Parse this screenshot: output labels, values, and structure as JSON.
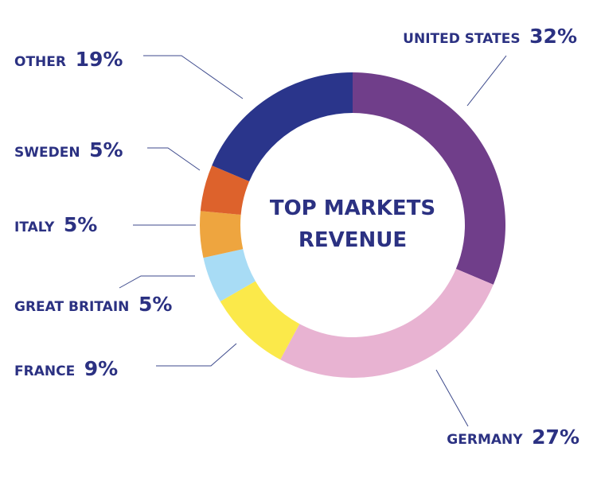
{
  "chart_data": {
    "type": "pie",
    "title_lines": [
      "TOP MARKETS",
      "REVENUE"
    ],
    "text_color": "#2b3182",
    "leader_color": "#3d4a8c",
    "slices": [
      {
        "label": "UNITED STATES",
        "value": 32,
        "value_label": "32%",
        "color": "#703e8a"
      },
      {
        "label": "GERMANY",
        "value": 27,
        "value_label": "27%",
        "color": "#e8b3d2"
      },
      {
        "label": "FRANCE",
        "value": 9,
        "value_label": "9%",
        "color": "#fbe94a"
      },
      {
        "label": "GREAT BRITAIN",
        "value": 5,
        "value_label": "5%",
        "color": "#a8dcf5"
      },
      {
        "label": "ITALY",
        "value": 5,
        "value_label": "5%",
        "color": "#eea53f"
      },
      {
        "label": "SWEDEN",
        "value": 5,
        "value_label": "5%",
        "color": "#dd622c"
      },
      {
        "label": "OTHER",
        "value": 19,
        "value_label": "19%",
        "color": "#2a358b"
      }
    ]
  }
}
